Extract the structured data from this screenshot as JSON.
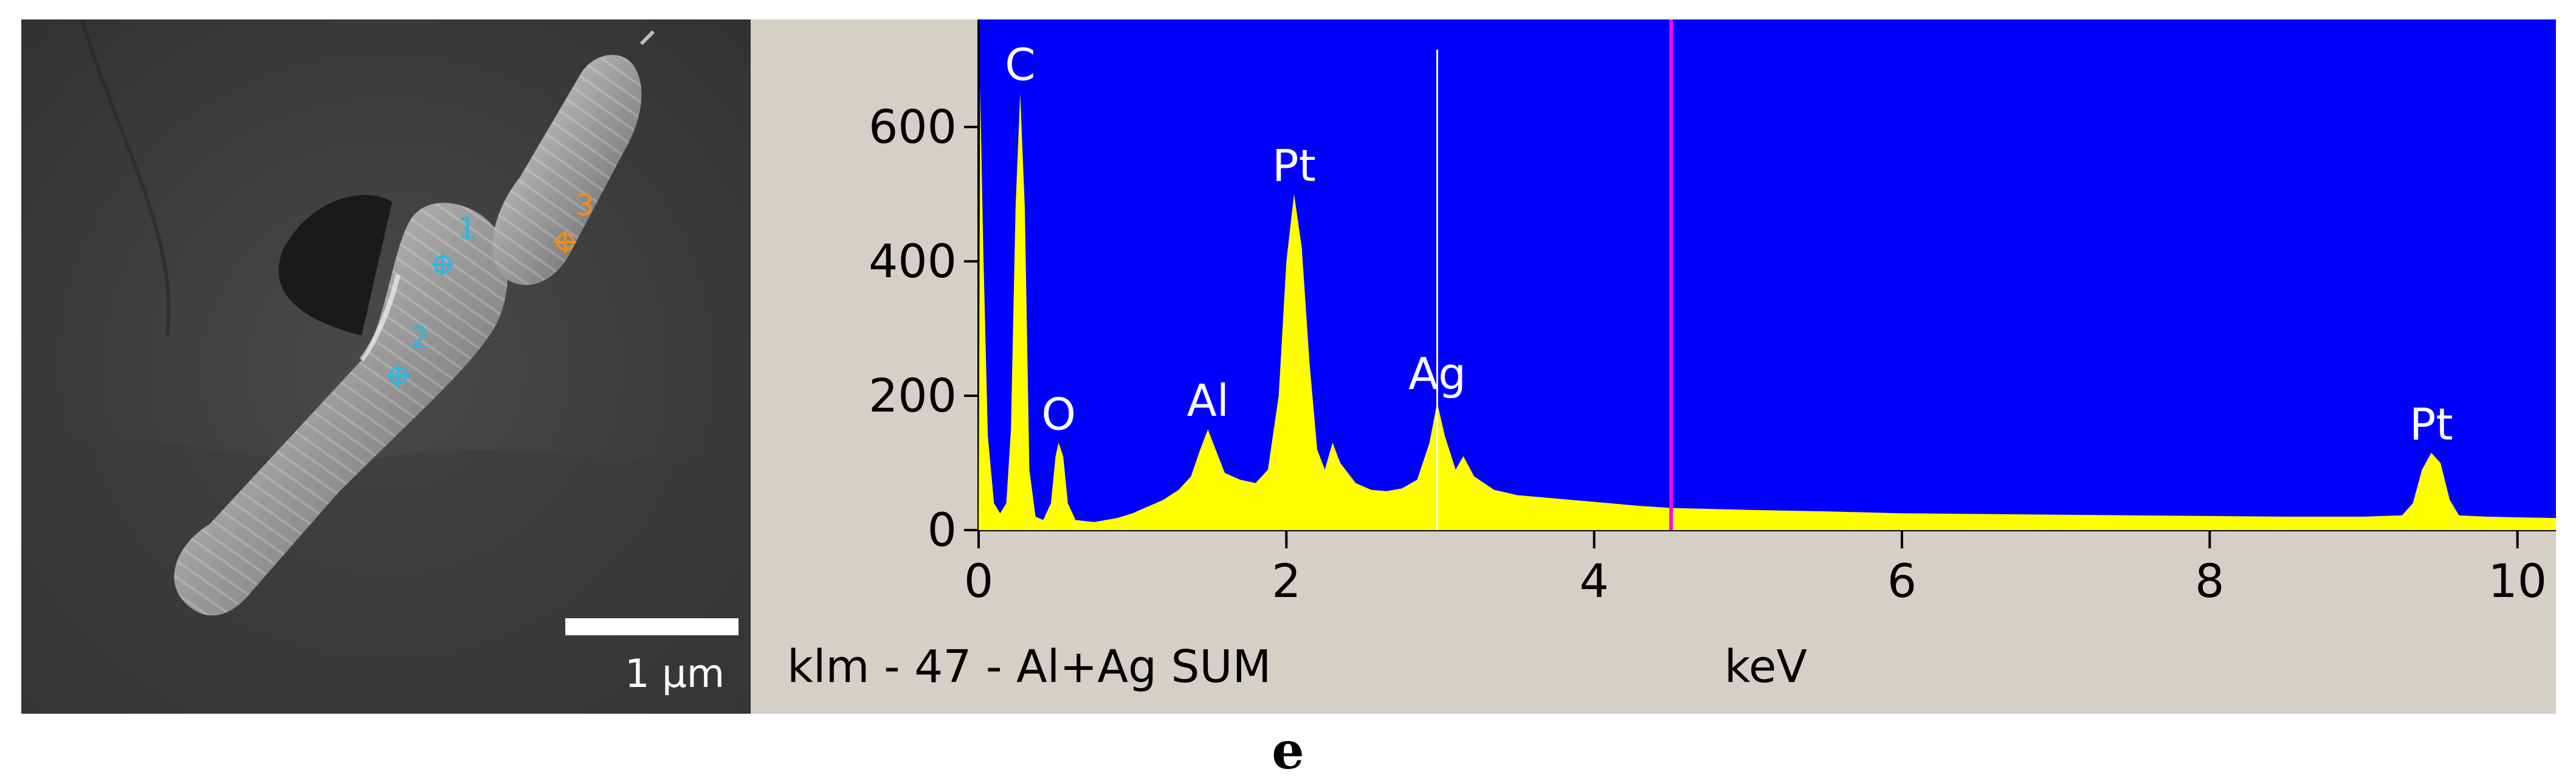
{
  "sem": {
    "scale_bar_label": "1 μm",
    "point_labels": [
      "1",
      "2",
      "3"
    ],
    "point_colors": [
      "#2ab8e6",
      "#2ab8e6",
      "#f08c1e"
    ]
  },
  "eds": {
    "footer_left": "klm - 47 - Al+Ag SUM",
    "colors": {
      "plot_bg": "#0000ff",
      "spectrum": "#ffff00",
      "marker": "#ff00ff",
      "panel_bg": "#d4d0c8"
    }
  },
  "figure_label": "e",
  "chart_data": {
    "type": "area",
    "xlabel": "keV",
    "ylabel": "",
    "xlim": [
      0,
      10.25
    ],
    "ylim": [
      0,
      760
    ],
    "xticks": [
      0,
      2,
      4,
      6,
      8,
      10
    ],
    "yticks": [
      0,
      200,
      400,
      600
    ],
    "grid": false,
    "marker_line_x": 4.5,
    "peaks": [
      {
        "element": "C",
        "x": 0.27,
        "y": 650
      },
      {
        "element": "O",
        "x": 0.52,
        "y": 130
      },
      {
        "element": "Al",
        "x": 1.49,
        "y": 150
      },
      {
        "element": "Pt",
        "x": 2.05,
        "y": 500
      },
      {
        "element": "Ag",
        "x": 2.98,
        "y": 190
      },
      {
        "element": "Pt",
        "x": 9.44,
        "y": 115
      }
    ],
    "series": [
      {
        "values": [
          [
            0.0,
            0
          ],
          [
            0.01,
            660
          ],
          [
            0.03,
            420
          ],
          [
            0.06,
            140
          ],
          [
            0.1,
            40
          ],
          [
            0.14,
            25
          ],
          [
            0.18,
            40
          ],
          [
            0.21,
            150
          ],
          [
            0.24,
            480
          ],
          [
            0.27,
            650
          ],
          [
            0.3,
            480
          ],
          [
            0.33,
            90
          ],
          [
            0.37,
            20
          ],
          [
            0.42,
            15
          ],
          [
            0.47,
            40
          ],
          [
            0.5,
            110
          ],
          [
            0.52,
            130
          ],
          [
            0.55,
            110
          ],
          [
            0.58,
            40
          ],
          [
            0.63,
            15
          ],
          [
            0.75,
            12
          ],
          [
            0.9,
            18
          ],
          [
            1.0,
            25
          ],
          [
            1.1,
            35
          ],
          [
            1.2,
            45
          ],
          [
            1.3,
            60
          ],
          [
            1.38,
            80
          ],
          [
            1.44,
            120
          ],
          [
            1.49,
            150
          ],
          [
            1.54,
            120
          ],
          [
            1.6,
            85
          ],
          [
            1.7,
            75
          ],
          [
            1.8,
            70
          ],
          [
            1.88,
            90
          ],
          [
            1.95,
            200
          ],
          [
            2.0,
            400
          ],
          [
            2.05,
            500
          ],
          [
            2.1,
            420
          ],
          [
            2.15,
            250
          ],
          [
            2.2,
            120
          ],
          [
            2.25,
            90
          ],
          [
            2.3,
            130
          ],
          [
            2.35,
            100
          ],
          [
            2.45,
            70
          ],
          [
            2.55,
            60
          ],
          [
            2.65,
            58
          ],
          [
            2.75,
            62
          ],
          [
            2.85,
            75
          ],
          [
            2.93,
            130
          ],
          [
            2.98,
            190
          ],
          [
            3.03,
            140
          ],
          [
            3.1,
            90
          ],
          [
            3.15,
            110
          ],
          [
            3.22,
            80
          ],
          [
            3.35,
            60
          ],
          [
            3.5,
            52
          ],
          [
            3.7,
            48
          ],
          [
            3.9,
            44
          ],
          [
            4.1,
            40
          ],
          [
            4.3,
            36
          ],
          [
            4.5,
            33
          ],
          [
            5.0,
            30
          ],
          [
            5.5,
            28
          ],
          [
            6.0,
            25
          ],
          [
            6.5,
            24
          ],
          [
            7.0,
            23
          ],
          [
            7.5,
            22
          ],
          [
            8.0,
            21
          ],
          [
            8.5,
            20
          ],
          [
            9.0,
            20
          ],
          [
            9.25,
            22
          ],
          [
            9.32,
            40
          ],
          [
            9.38,
            90
          ],
          [
            9.44,
            115
          ],
          [
            9.5,
            100
          ],
          [
            9.56,
            45
          ],
          [
            9.62,
            22
          ],
          [
            9.8,
            20
          ],
          [
            10.0,
            19
          ],
          [
            10.25,
            18
          ]
        ]
      }
    ]
  }
}
